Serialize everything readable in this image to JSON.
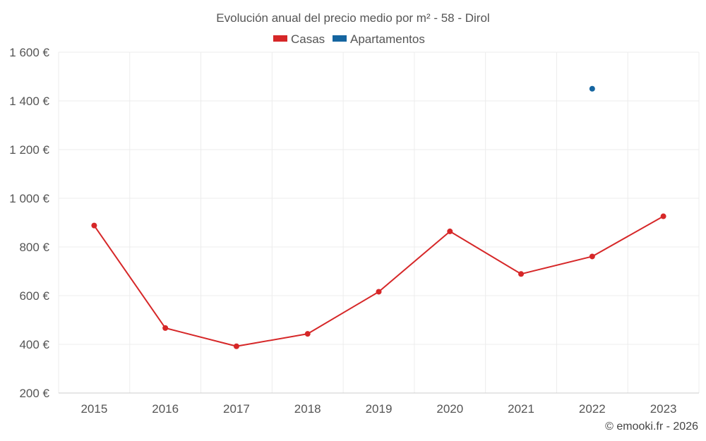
{
  "chart_data": {
    "type": "line",
    "title": "Evolución anual del precio medio por m² - 58 - Dirol",
    "categories": [
      "2015",
      "2016",
      "2017",
      "2018",
      "2019",
      "2020",
      "2021",
      "2022",
      "2023"
    ],
    "series": [
      {
        "name": "Casas",
        "color": "#d62728",
        "values": [
          888,
          467,
          392,
          443,
          616,
          864,
          689,
          761,
          926
        ]
      },
      {
        "name": "Apartamentos",
        "color": "#1565a0",
        "values": [
          null,
          null,
          null,
          null,
          null,
          null,
          null,
          1450,
          null
        ]
      }
    ],
    "ylim": [
      200,
      1600
    ],
    "yticks": [
      200,
      400,
      600,
      800,
      1000,
      1200,
      1400,
      1600
    ],
    "ytick_labels": [
      "200 €",
      "400 €",
      "600 €",
      "800 €",
      "1 000 €",
      "1 200 €",
      "1 400 €",
      "1 600 €"
    ],
    "xlabel": "",
    "ylabel": "",
    "grid": true,
    "legend_position": "top-center",
    "credit": "© emooki.fr - 2026"
  }
}
